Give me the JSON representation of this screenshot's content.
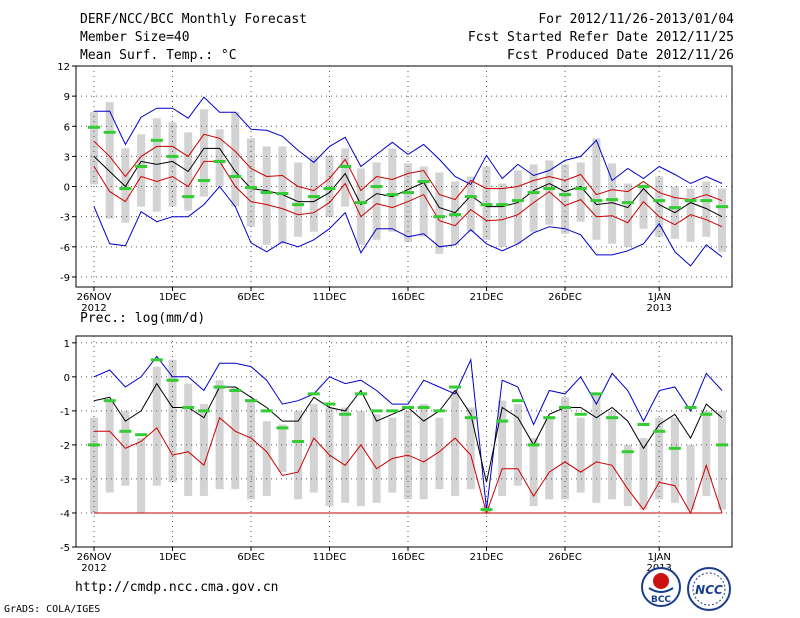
{
  "header": {
    "title": "DERF/NCC/BCC Monthly Forecast",
    "member": "Member Size=40",
    "variable": "Mean Surf. Temp.: °C",
    "period": "For 2012/11/26-2013/01/04",
    "fcst_started": "Fcst Started Refer Date 2012/11/25",
    "fcst_produced": "Fcst Produced Date 2012/11/26"
  },
  "footer": {
    "url": "http://cmdp.ncc.cma.gov.cn",
    "grads": "GrADS: COLA/IGES",
    "logo_bcc": "BCC",
    "logo_ncc": "NCC"
  },
  "colors": {
    "max_line": "#0000cc",
    "min_line": "#cc0000",
    "ens_mean": "#000000",
    "quartile_band": "#cc0000",
    "box": "#d3d3d3",
    "median": "#33cc33"
  },
  "chart_data": [
    {
      "type": "box-line",
      "title": "Mean Surf. Temp.: °C",
      "ylabel": "",
      "ylim": [
        -10,
        12
      ],
      "y_ticks": [
        -9,
        -6,
        -3,
        0,
        3,
        6,
        9,
        12
      ],
      "x_days": 40,
      "x_tick_labels": [
        {
          "day": 0,
          "label": "26NOV",
          "sub": "2012"
        },
        {
          "day": 5,
          "label": "1DEC"
        },
        {
          "day": 10,
          "label": "6DEC"
        },
        {
          "day": 15,
          "label": "11DEC"
        },
        {
          "day": 20,
          "label": "16DEC"
        },
        {
          "day": 25,
          "label": "21DEC"
        },
        {
          "day": 30,
          "label": "26DEC"
        },
        {
          "day": 36,
          "label": "1JAN",
          "sub": "2013"
        }
      ],
      "series": [
        {
          "name": "max",
          "values": [
            7.5,
            7.5,
            4.2,
            6.9,
            7.8,
            7.8,
            6.8,
            8.9,
            7.4,
            7.4,
            5.7,
            5.6,
            5.0,
            3.6,
            2.4,
            4.0,
            4.9,
            2.0,
            3.2,
            4.4,
            3.2,
            4.2,
            2.7,
            1.0,
            0.2,
            3.1,
            0.8,
            2.2,
            1.1,
            1.6,
            2.6,
            3.0,
            4.6,
            0.6,
            1.8,
            0.8,
            2.0,
            1.2,
            0.3,
            1.0,
            0.3
          ]
        },
        {
          "name": "upper",
          "values": [
            4.5,
            3.0,
            1.0,
            3.0,
            4.0,
            4.0,
            3.0,
            5.2,
            4.8,
            3.5,
            1.8,
            1.0,
            1.1,
            0.0,
            -0.4,
            0.8,
            2.7,
            -0.4,
            1.0,
            0.7,
            1.3,
            1.6,
            -0.8,
            -1.3,
            0.6,
            -0.2,
            -0.2,
            0.0,
            0.6,
            1.0,
            0.6,
            1.2,
            -0.8,
            -0.3,
            -0.5,
            0.5,
            -0.6,
            -1.1,
            -1.3,
            -0.8,
            -1.4
          ]
        },
        {
          "name": "mean",
          "values": [
            3.0,
            1.5,
            0.0,
            2.5,
            2.2,
            2.5,
            1.5,
            3.8,
            3.8,
            1.5,
            -0.2,
            -0.4,
            -0.8,
            -1.5,
            -1.5,
            -0.6,
            1.3,
            -1.8,
            -0.7,
            -1.0,
            -0.3,
            0.4,
            -2.1,
            -2.6,
            -0.9,
            -2.0,
            -2.0,
            -1.6,
            -0.4,
            0.3,
            -0.5,
            0.0,
            -1.8,
            -1.6,
            -2.1,
            -0.2,
            -1.8,
            -2.6,
            -1.6,
            -2.2,
            -3.0
          ]
        },
        {
          "name": "lower",
          "values": [
            2.0,
            -0.5,
            -1.5,
            1.0,
            0.5,
            1.0,
            0.0,
            2.5,
            2.5,
            0.0,
            -1.5,
            -1.8,
            -2.2,
            -2.8,
            -2.6,
            -1.6,
            0.3,
            -3.0,
            -1.7,
            -2.1,
            -1.5,
            -0.8,
            -3.4,
            -3.9,
            -2.3,
            -3.4,
            -3.3,
            -2.8,
            -1.6,
            -0.5,
            -1.9,
            -1.3,
            -3.0,
            -2.9,
            -3.6,
            -1.5,
            -3.0,
            -3.8,
            -2.8,
            -3.3,
            -4.0
          ]
        },
        {
          "name": "min",
          "values": [
            -2.0,
            -5.7,
            -5.9,
            -2.5,
            -3.5,
            -3.0,
            -3.0,
            -1.8,
            0.0,
            -2.0,
            -5.6,
            -6.5,
            -5.5,
            -6.0,
            -5.3,
            -4.2,
            -2.6,
            -6.6,
            -4.2,
            -4.2,
            -5.0,
            -4.7,
            -6.0,
            -5.8,
            -4.3,
            -5.7,
            -6.4,
            -5.7,
            -4.6,
            -4.0,
            -4.2,
            -4.8,
            -6.8,
            -6.8,
            -6.4,
            -5.7,
            -3.7,
            -6.5,
            -7.9,
            -5.8,
            -7.0
          ]
        },
        {
          "name": "box_high",
          "values": [
            7.4,
            8.4,
            3.8,
            5.2,
            6.8,
            6.4,
            5.4,
            7.7,
            5.7,
            7.4,
            4.8,
            4.0,
            4.0,
            2.4,
            3.0,
            3.1,
            3.8,
            1.8,
            2.4,
            3.8,
            2.3,
            2.0,
            1.4,
            0.5,
            1.0,
            2.0,
            0.3,
            1.6,
            2.2,
            2.6,
            2.2,
            2.4,
            4.8,
            2.3,
            0.3,
            0.2,
            1.0,
            0.0,
            -0.2,
            0.5,
            -0.2
          ]
        },
        {
          "name": "box_low",
          "values": [
            0.2,
            -3.2,
            -3.6,
            -2.0,
            -2.5,
            -2.0,
            -2.4,
            -1.0,
            0.0,
            -2.0,
            -4.0,
            -5.8,
            -5.7,
            -5.0,
            -4.5,
            -3.0,
            -2.0,
            -5.8,
            -5.3,
            -4.5,
            -5.5,
            -5.0,
            -6.7,
            -5.8,
            -4.5,
            -5.3,
            -6.0,
            -5.7,
            -4.5,
            -3.8,
            -4.7,
            -3.5,
            -5.3,
            -5.7,
            -6.0,
            -4.2,
            -5.0,
            -5.2,
            -5.5,
            -5.0,
            -6.5
          ]
        },
        {
          "name": "median",
          "values": [
            5.9,
            5.4,
            -0.2,
            2.0,
            4.6,
            3.0,
            -1.0,
            0.6,
            2.5,
            1.0,
            -0.1,
            -0.6,
            -0.7,
            -1.8,
            -1.0,
            -0.2,
            2.0,
            -1.6,
            0.0,
            -0.8,
            -0.6,
            0.5,
            -3.0,
            -2.8,
            -1.0,
            -1.8,
            -1.8,
            -1.4,
            -0.6,
            -0.2,
            -0.8,
            -0.2,
            -1.4,
            -1.3,
            -1.6,
            0.0,
            -1.4,
            -2.1,
            -1.4,
            -1.4,
            -2.0
          ]
        }
      ]
    },
    {
      "type": "box-line",
      "title": "Prec.: log(mm/d)",
      "ylabel": "",
      "ylim": [
        -5,
        1.2
      ],
      "y_ticks": [
        -5,
        -4,
        -3,
        -2,
        -1,
        0,
        1
      ],
      "x_days": 40,
      "x_tick_labels": [
        {
          "day": 0,
          "label": "26NOV",
          "sub": "2012"
        },
        {
          "day": 5,
          "label": "1DEC"
        },
        {
          "day": 10,
          "label": "6DEC"
        },
        {
          "day": 15,
          "label": "11DEC"
        },
        {
          "day": 20,
          "label": "16DEC"
        },
        {
          "day": 25,
          "label": "21DEC"
        },
        {
          "day": 30,
          "label": "26DEC"
        },
        {
          "day": 36,
          "label": "1JAN",
          "sub": "2013"
        }
      ],
      "series": [
        {
          "name": "max",
          "values": [
            0.0,
            0.2,
            -0.3,
            0.0,
            0.6,
            0.0,
            0.0,
            -0.4,
            0.4,
            0.4,
            0.3,
            -0.1,
            -0.8,
            -0.7,
            -0.5,
            0.0,
            -0.2,
            -0.1,
            -0.4,
            -0.8,
            -0.8,
            -0.1,
            -0.3,
            -0.5,
            0.5,
            -3.9,
            -0.1,
            -0.3,
            -1.4,
            -0.4,
            -0.5,
            0.0,
            -0.8,
            0.1,
            -0.4,
            -1.3,
            -0.4,
            -0.3,
            -1.0,
            0.1,
            -0.4
          ]
        },
        {
          "name": "mean",
          "values": [
            -0.7,
            -0.6,
            -1.3,
            -1.0,
            -0.2,
            -0.9,
            -0.9,
            -1.2,
            -0.3,
            -0.3,
            -0.6,
            -0.9,
            -1.3,
            -1.3,
            -0.6,
            -0.9,
            -1.0,
            -0.4,
            -1.3,
            -1.1,
            -0.9,
            -1.3,
            -1.0,
            -0.4,
            -1.1,
            -3.1,
            -0.9,
            -1.2,
            -2.0,
            -1.1,
            -0.9,
            -0.9,
            -1.2,
            -0.9,
            -1.3,
            -2.1,
            -1.4,
            -1.1,
            -1.8,
            -0.8,
            -1.2
          ]
        },
        {
          "name": "min",
          "values": [
            -1.6,
            -1.6,
            -2.1,
            -1.9,
            -1.5,
            -2.3,
            -2.2,
            -2.6,
            -1.2,
            -1.6,
            -1.8,
            -2.2,
            -2.9,
            -2.8,
            -1.8,
            -2.3,
            -2.6,
            -2.0,
            -2.7,
            -2.4,
            -2.3,
            -2.5,
            -2.2,
            -1.8,
            -2.3,
            -4.0,
            -2.7,
            -2.7,
            -3.5,
            -2.8,
            -2.5,
            -2.8,
            -2.5,
            -2.6,
            -3.3,
            -3.9,
            -3.1,
            -3.2,
            -4.0,
            -2.6,
            -4.0
          ]
        },
        {
          "name": "floor",
          "values": [
            -4,
            -4,
            -4,
            -4,
            -4,
            -4,
            -4,
            -4,
            -4,
            -4,
            -4,
            -4,
            -4,
            -4,
            -4,
            -4,
            -4,
            -4,
            -4,
            -4,
            -4,
            -4,
            -4,
            -4,
            -4,
            -4,
            -4,
            -4,
            -4,
            -4,
            -4,
            -4,
            -4,
            -4,
            -4,
            -4,
            -4,
            -4,
            -4,
            -4,
            -4
          ]
        },
        {
          "name": "box_high",
          "values": [
            -1.2,
            -0.7,
            -1.0,
            -1.8,
            0.3,
            0.5,
            -0.2,
            -0.8,
            -0.1,
            -0.3,
            -0.7,
            -1.3,
            -1.4,
            -1.0,
            -0.8,
            -0.9,
            -0.9,
            -1.0,
            -1.1,
            -1.2,
            -1.0,
            -0.8,
            -1.2,
            -0.4,
            -0.9,
            -3.8,
            -0.7,
            -0.8,
            -1.8,
            -1.2,
            -0.6,
            -1.2,
            -0.5,
            -1.0,
            -2.0,
            -1.8,
            -1.2,
            -1.2,
            -2.0,
            -1.0,
            -1.0
          ]
        },
        {
          "name": "box_low",
          "values": [
            -4.0,
            -3.4,
            -3.2,
            -4.0,
            -3.2,
            -3.1,
            -3.5,
            -3.5,
            -3.3,
            -3.3,
            -3.6,
            -3.5,
            -2.8,
            -3.6,
            -3.4,
            -3.8,
            -3.7,
            -3.8,
            -3.7,
            -3.4,
            -3.6,
            -3.6,
            -3.3,
            -3.5,
            -3.3,
            -4.0,
            -3.5,
            -3.2,
            -3.8,
            -3.6,
            -3.6,
            -3.4,
            -3.7,
            -3.6,
            -3.8,
            -3.9,
            -3.6,
            -3.7,
            -3.9,
            -3.5,
            -3.9
          ]
        },
        {
          "name": "median",
          "values": [
            -2.0,
            -0.7,
            -1.6,
            -1.7,
            0.5,
            -0.1,
            -0.9,
            -1.0,
            -0.3,
            -0.4,
            -0.7,
            -1.0,
            -1.5,
            -1.9,
            -0.5,
            -0.8,
            -1.1,
            -0.5,
            -1.0,
            -1.0,
            -0.9,
            -0.9,
            -1.0,
            -0.3,
            -1.2,
            -3.9,
            -1.3,
            -0.7,
            -2.0,
            -1.2,
            -0.9,
            -1.1,
            -0.5,
            -1.2,
            -2.2,
            -1.4,
            -1.6,
            -2.1,
            -0.9,
            -1.1,
            -2.0
          ]
        }
      ]
    }
  ]
}
